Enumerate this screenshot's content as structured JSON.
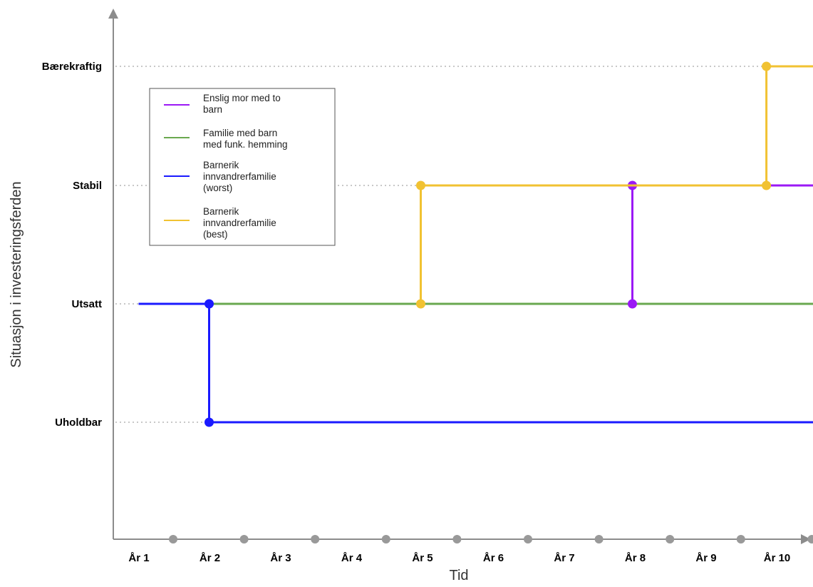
{
  "chart_data": {
    "type": "line",
    "title": "",
    "xlabel": "Tid",
    "ylabel": "Situasjon i investeringsferden",
    "categories": [
      "År 1",
      "År 2",
      "År 3",
      "År 4",
      "År 5",
      "År 6",
      "År 7",
      "År 8",
      "År 9",
      "År 10"
    ],
    "levels": [
      "Uholdbar",
      "Utsatt",
      "Stabil",
      "Bærekraftig"
    ],
    "grid": "dotted horizontal lines at each level",
    "legend_position": "top-left",
    "series": [
      {
        "name": "Enslig mor med to barn",
        "color": "#9b19f5",
        "points": [
          {
            "x": 7.5,
            "y": "Utsatt",
            "marker": true
          },
          {
            "x": 7.5,
            "y": "Stabil",
            "marker": true
          },
          {
            "x": 10.3,
            "y": "Stabil",
            "marker": true
          }
        ]
      },
      {
        "name": "Familie med barn med funk. hemming",
        "color": "#6aa84f",
        "points": [
          {
            "x": 0.5,
            "y": "Utsatt",
            "marker": false
          },
          {
            "x": 10.3,
            "y": "Utsatt",
            "marker": true
          }
        ]
      },
      {
        "name": "Barnerik innvandrerfamilie (worst)",
        "color": "#1a1aff",
        "points": [
          {
            "x": 0.5,
            "y": "Utsatt",
            "marker": false
          },
          {
            "x": 1.5,
            "y": "Utsatt",
            "marker": true
          },
          {
            "x": 1.5,
            "y": "Uholdbar",
            "marker": true
          },
          {
            "x": 10.4,
            "y": "Uholdbar",
            "marker": true
          }
        ]
      },
      {
        "name": "Barnerik innvandrerfamilie (best)",
        "color": "#f1c232",
        "points": [
          {
            "x": 4.5,
            "y": "Utsatt",
            "marker": true
          },
          {
            "x": 4.5,
            "y": "Stabil",
            "marker": true
          },
          {
            "x": 9.4,
            "y": "Stabil",
            "marker": true
          },
          {
            "x": 9.4,
            "y": "Bærekraftig",
            "marker": true
          },
          {
            "x": 10.3,
            "y": "Bærekraftig",
            "marker": true
          }
        ]
      }
    ]
  },
  "legend_labels": [
    [
      "Enslig mor med to",
      "barn"
    ],
    [
      "Familie med barn",
      "med funk. hemming"
    ],
    [
      "Barnerik",
      "innvandrerfamilie",
      "(worst)"
    ],
    [
      "Barnerik",
      "innvandrerfamilie",
      "(best)"
    ]
  ],
  "colors": {
    "axis": "#8c8c8c",
    "grid": "#a6a6a6",
    "tick_dot": "#999999"
  }
}
